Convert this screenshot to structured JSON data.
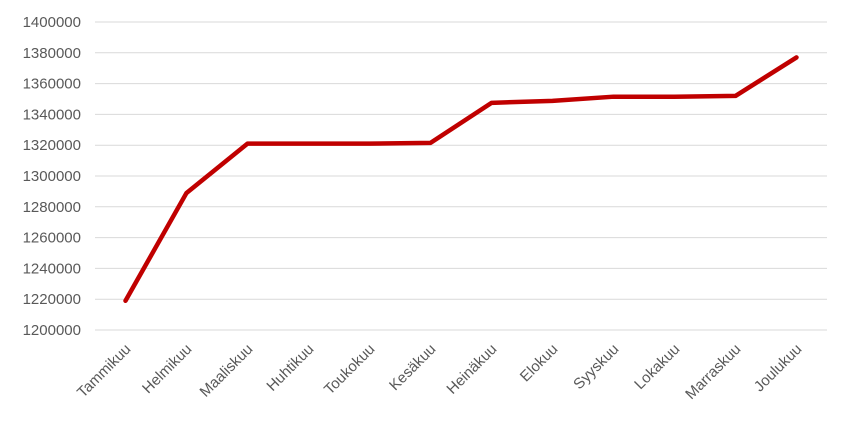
{
  "chart_data": {
    "type": "line",
    "title": "",
    "xlabel": "",
    "ylabel": "",
    "categories": [
      "Tammikuu",
      "Helmikuu",
      "Maaliskuu",
      "Huhtikuu",
      "Toukokuu",
      "Kesäkuu",
      "Heinäkuu",
      "Elokuu",
      "Syyskuu",
      "Lokakuu",
      "Marraskuu",
      "Joulukuu"
    ],
    "series": [
      {
        "values": [
          1219000,
          1289000,
          1321000,
          1321000,
          1321000,
          1321500,
          1347500,
          1348800,
          1351500,
          1351500,
          1352000,
          1377000
        ],
        "color": "#c00000"
      }
    ],
    "ylim": [
      1200000,
      1400000
    ],
    "yticks": [
      "1200000",
      "1220000",
      "1240000",
      "1260000",
      "1280000",
      "1300000",
      "1320000",
      "1340000",
      "1360000",
      "1380000",
      "1400000"
    ],
    "grid": true,
    "legend": "none"
  }
}
